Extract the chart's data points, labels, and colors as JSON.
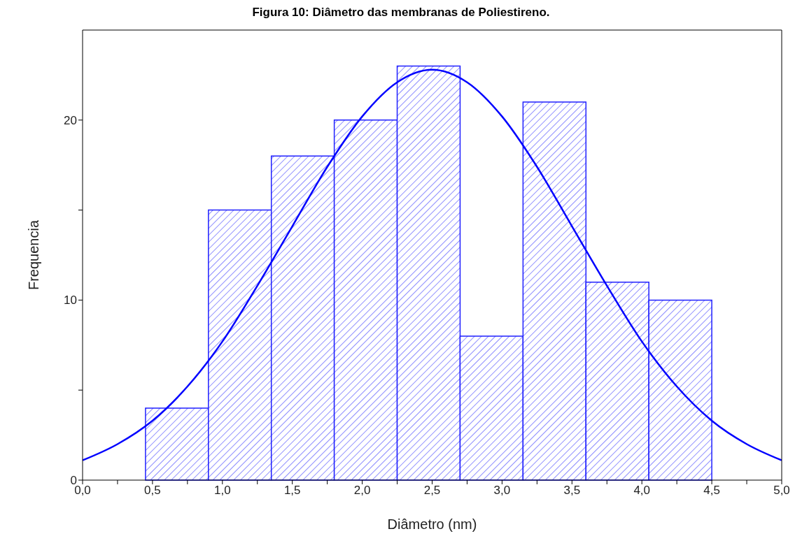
{
  "chart_data": {
    "type": "histogram",
    "title": "Figura 10: Diâmetro das membranas de Poliestireno.",
    "xlabel": "Diâmetro (nm)",
    "ylabel": "Frequencia",
    "series": [
      {
        "color": "#2020ff",
        "bins": [
          0.45,
          0.9,
          1.35,
          1.8,
          2.25,
          2.7,
          3.15,
          3.6,
          4.05,
          4.5
        ],
        "values": [
          4,
          15,
          18,
          20,
          23,
          8,
          21,
          11,
          10
        ]
      },
      {
        "type": "line",
        "color": "#0000ff",
        "x": [
          0,
          0.25,
          0.5,
          0.75,
          1.0,
          1.25,
          1.5,
          1.75,
          2.0,
          2.25,
          2.5,
          2.75,
          3.0,
          3.25,
          3.5,
          3.75,
          4.0,
          4.25,
          4.5,
          4.75,
          5.0
        ],
        "values": [
          1.1,
          2.0,
          3.3,
          5.2,
          7.7,
          10.8,
          14.1,
          17.4,
          20.2,
          22.1,
          22.8,
          22.1,
          20.2,
          17.4,
          14.1,
          10.8,
          7.7,
          5.2,
          3.3,
          2.0,
          1.1
        ]
      }
    ],
    "xlim": [
      0,
      5
    ],
    "ylim": [
      0,
      25
    ],
    "xticks": [
      {
        "value": 0,
        "label": "0,0"
      },
      {
        "value": 0.25,
        "label": null
      },
      {
        "value": 0.5,
        "label": "0,5"
      },
      {
        "value": 0.75,
        "label": null
      },
      {
        "value": 1,
        "label": "1,0"
      },
      {
        "value": 1.25,
        "label": null
      },
      {
        "value": 1.5,
        "label": "1,5"
      },
      {
        "value": 1.75,
        "label": null
      },
      {
        "value": 2,
        "label": "2,0"
      },
      {
        "value": 2.25,
        "label": null
      },
      {
        "value": 2.5,
        "label": "2,5"
      },
      {
        "value": 2.75,
        "label": null
      },
      {
        "value": 3,
        "label": "3,0"
      },
      {
        "value": 3.25,
        "label": null
      },
      {
        "value": 3.5,
        "label": "3,5"
      },
      {
        "value": 3.75,
        "label": null
      },
      {
        "value": 4,
        "label": "4,0"
      },
      {
        "value": 4.25,
        "label": null
      },
      {
        "value": 4.5,
        "label": "4,5"
      },
      {
        "value": 4.75,
        "label": null
      },
      {
        "value": 5,
        "label": "5,0"
      }
    ],
    "yticks": [
      0,
      {
        "value": 5,
        "label": null
      },
      10,
      {
        "value": 15,
        "label": null
      },
      20
    ],
    "marker": "none",
    "line_style": "solid"
  }
}
